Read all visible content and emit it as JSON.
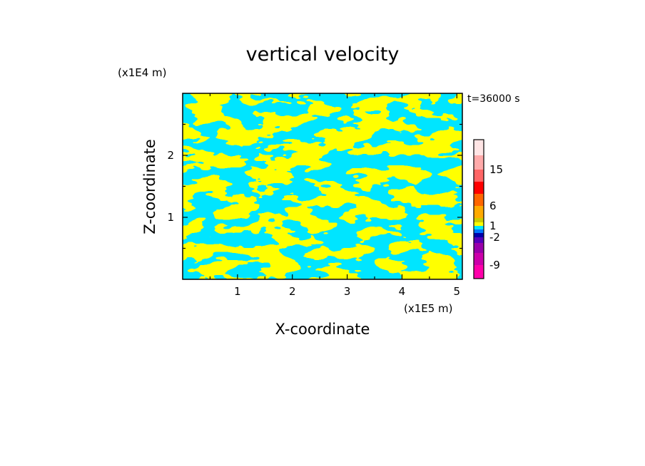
{
  "chart_data": {
    "type": "heatmap",
    "title": "vertical velocity",
    "xlabel": "X-coordinate",
    "ylabel": "Z-coordinate",
    "x_unit": "(x1E5 m)",
    "y_unit": "(x1E4 m)",
    "time_label": "t=36000 s",
    "xlim": [
      0,
      5.1
    ],
    "ylim": [
      0,
      3.0
    ],
    "x_ticks": [
      1,
      2,
      3,
      4,
      5
    ],
    "y_ticks": [
      1,
      2
    ],
    "x_tick_labels": [
      "1",
      "2",
      "3",
      "4",
      "5"
    ],
    "y_tick_labels": [
      "1",
      "2"
    ],
    "levels": [
      -12,
      -9,
      -6,
      -4,
      -2,
      -1,
      0,
      1,
      2,
      4,
      6,
      9,
      12,
      15,
      18,
      21
    ],
    "colors": [
      "#ff00aa",
      "#cc00aa",
      "#9900aa",
      "#5500bb",
      "#0000aa",
      "#0077ff",
      "#00e5ff",
      "#ffff00",
      "#cccc00",
      "#ffaa00",
      "#ff6600",
      "#ff0000",
      "#ff6666",
      "#ffaaaa",
      "#ffe5e5"
    ],
    "colorbar_labels": [
      "15",
      "6",
      "1",
      "-2",
      "-9"
    ],
    "colorbar_label_levels": [
      15,
      6,
      1,
      -2,
      -9
    ],
    "dominant_values": {
      "positive": {
        "range": [
          0,
          1
        ],
        "color": "#ffff00"
      },
      "negative": {
        "range": [
          -1,
          0
        ],
        "color": "#00e5ff"
      }
    }
  }
}
